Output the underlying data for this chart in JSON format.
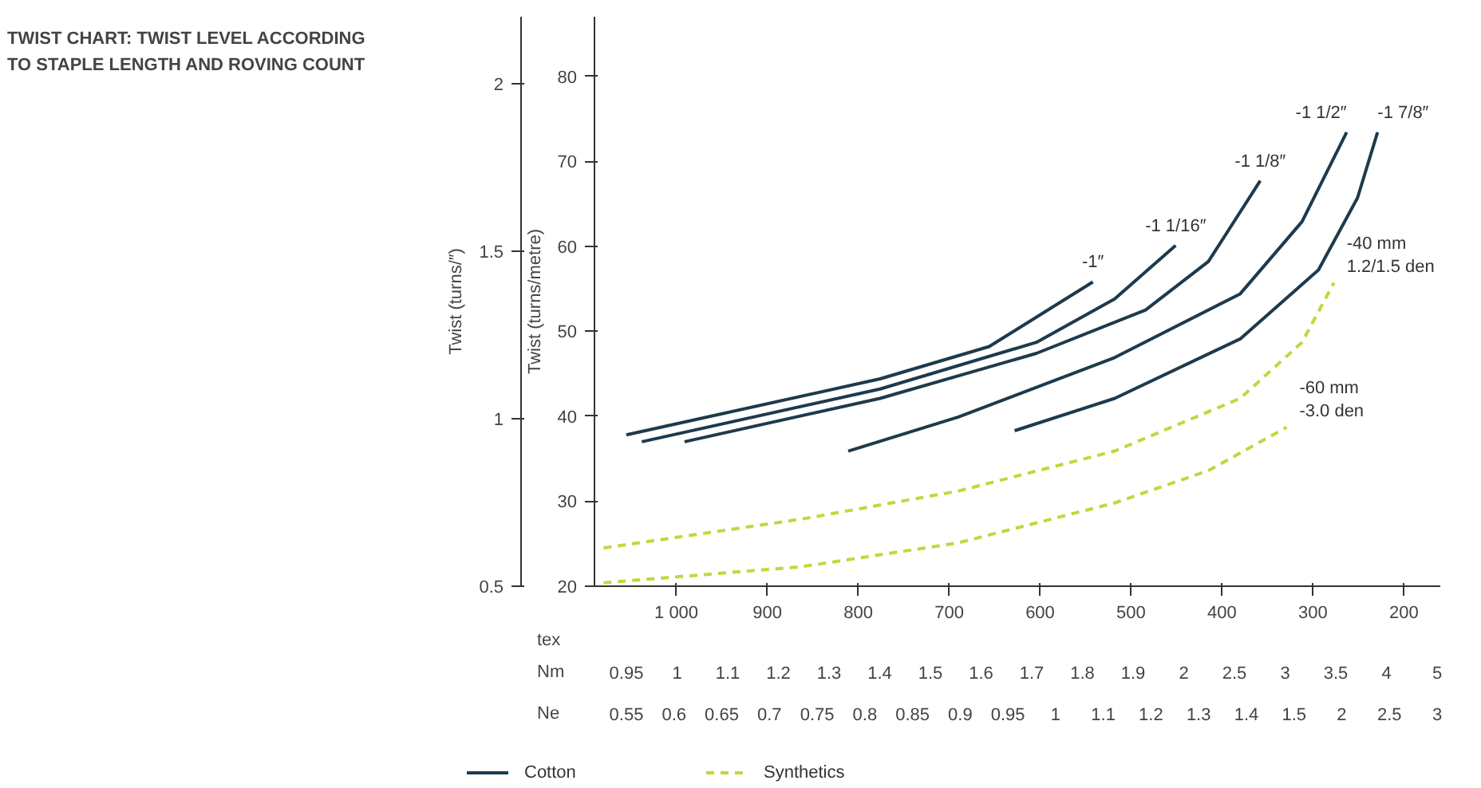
{
  "chart_data": {
    "type": "line",
    "title": "TWIST CHART: TWIST LEVEL ACCORDING TO STAPLE LENGTH AND ROVING COUNT",
    "xlabel": "tex",
    "ylabel": "Twist (turns/metre)",
    "y2label": "Twist (turns/″)",
    "xlim": [
      1090,
      160
    ],
    "xticks": [
      {
        "value": 1000,
        "label": "1 000"
      },
      900,
      800,
      700,
      600,
      500,
      400,
      300,
      200
    ],
    "ylim": [
      20,
      87
    ],
    "yticks": [
      20,
      30,
      40,
      50,
      60,
      70,
      80
    ],
    "y2lim": [
      0.5,
      2.2
    ],
    "y2ticks": [
      0.5,
      1.0,
      1.5,
      2.0
    ],
    "legend": "bottom",
    "series": [
      {
        "name": "Cotton",
        "color": "#1e3a4c",
        "line_style": "solid",
        "x": [
          1055,
          776,
          656,
          542
        ],
        "values": [
          37.8,
          44.4,
          48.2,
          55.8
        ]
      },
      {
        "color": "#1e3a4c",
        "line_style": "solid",
        "x": [
          1038,
          776,
          604,
          518,
          451
        ],
        "values": [
          37.0,
          43.2,
          48.7,
          53.8,
          60.1
        ]
      },
      {
        "color": "#1e3a4c",
        "line_style": "solid",
        "x": [
          991,
          776,
          604,
          484,
          415,
          358
        ],
        "values": [
          37.0,
          42.1,
          47.4,
          52.5,
          58.2,
          67.7
        ]
      },
      {
        "color": "#1e3a4c",
        "line_style": "solid",
        "x": [
          811,
          690,
          518,
          380,
          312,
          263
        ],
        "values": [
          35.9,
          39.9,
          46.9,
          54.4,
          62.9,
          73.4
        ]
      },
      {
        "color": "#1e3a4c",
        "line_style": "solid",
        "x": [
          628,
          518,
          380,
          294,
          251,
          229
        ],
        "values": [
          38.3,
          42.1,
          49.1,
          57.2,
          65.7,
          73.4
        ]
      },
      {
        "name": "Synthetics",
        "color": "#c8d43c",
        "line_style": "dashed",
        "x": [
          1080,
          862,
          690,
          518,
          380,
          312,
          277
        ],
        "values": [
          24.5,
          27.9,
          31.2,
          35.9,
          42.1,
          48.7,
          55.7
        ]
      },
      {
        "color": "#c8d43c",
        "line_style": "dashed",
        "x": [
          1080,
          862,
          690,
          518,
          415,
          329
        ],
        "values": [
          20.4,
          22.3,
          25.1,
          29.8,
          33.6,
          38.7
        ]
      }
    ],
    "annotations": [
      {
        "text": "-1″",
        "x": 542,
        "y": 55.8
      },
      {
        "text": "-1 1/16″",
        "x": 451,
        "y": 60.1
      },
      {
        "text": "-1 1/8″",
        "x": 358,
        "y": 67.7
      },
      {
        "text": "-1 1/2″",
        "x": 263,
        "y": 73.4
      },
      {
        "text": "-1 7/8″",
        "x": 229,
        "y": 73.4
      },
      {
        "text": "-40 mm\n1.2/1.5 den",
        "x": 277,
        "y": 55.7
      },
      {
        "text": "-60 mm\n-3.0 den",
        "x": 329,
        "y": 38.7
      },
      "Nm    0.95    1    1.1    1.2    1.3    1.4    1.5    1.6    1.7    1.8    1.9    2    2.5    3    3.5    4    5",
      "Ne    0.55   0.6   0.65   0.7   0.75   0.8   0.85   0.9   0.95   1   1.1   1.2   1.3   1.4   1.5   2   2.5   3"
    ]
  }
}
